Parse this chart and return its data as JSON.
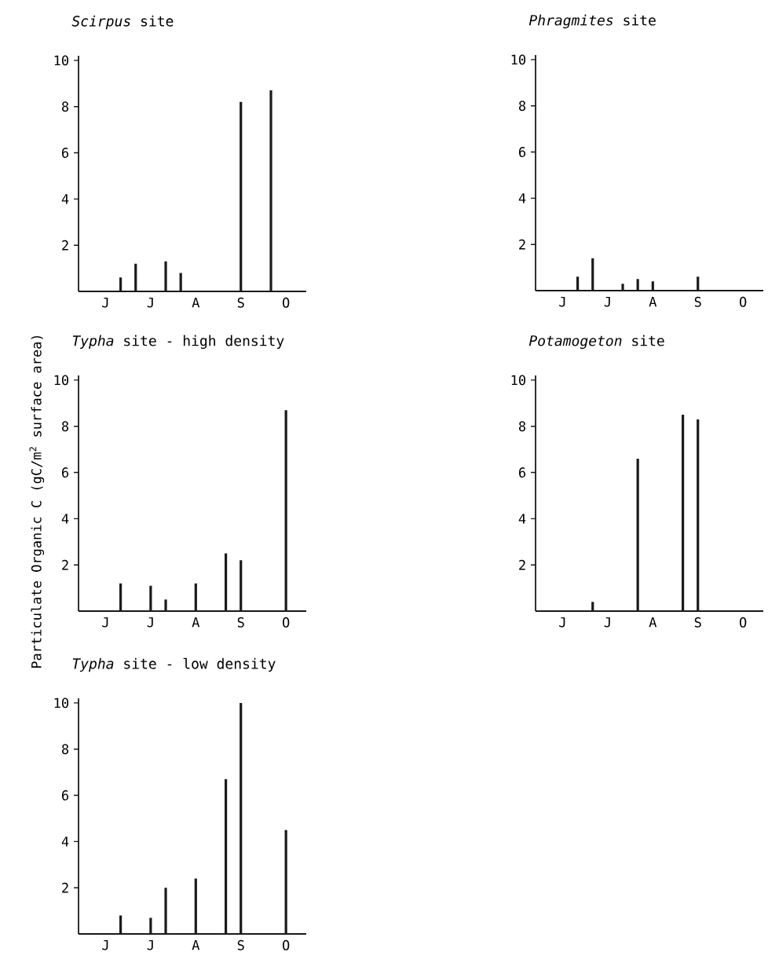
{
  "chart_data": [
    {
      "type": "bar",
      "title": "*Scirpus* site",
      "color": "#1a1a1a",
      "categories": [
        null,
        "J",
        null,
        null,
        "J",
        null,
        null,
        "A",
        null,
        null,
        "S",
        null,
        null,
        "O",
        null
      ],
      "values": [
        null,
        null,
        0.6,
        1.2,
        null,
        1.3,
        0.8,
        null,
        null,
        null,
        8.2,
        null,
        8.7,
        null,
        null
      ],
      "ylim": [
        0,
        10.2
      ],
      "yticks": [
        2,
        4,
        6,
        8,
        10
      ]
    },
    {
      "type": "bar",
      "title": "*Phragmites* site",
      "color": "#1a1a1a",
      "categories": [
        null,
        "J",
        null,
        null,
        "J",
        null,
        null,
        "A",
        null,
        null,
        "S",
        null,
        null,
        "O",
        null
      ],
      "values": [
        null,
        null,
        0.6,
        1.4,
        null,
        0.3,
        0.5,
        0.4,
        null,
        null,
        0.6,
        null,
        null,
        null,
        null
      ],
      "ylim": [
        0,
        10.2
      ],
      "yticks": [
        2,
        4,
        6,
        8,
        10
      ]
    },
    {
      "type": "bar",
      "title": "*Typha* site -  high density",
      "ylabel": "Particulate Organic C (gC/m$^{2}$ surface area)",
      "color": "#1a1a1a",
      "categories": [
        null,
        "J",
        null,
        null,
        "J",
        null,
        null,
        "A",
        null,
        null,
        "S",
        null,
        null,
        "O",
        null
      ],
      "values": [
        null,
        null,
        1.2,
        null,
        1.1,
        0.5,
        null,
        1.2,
        null,
        2.5,
        2.2,
        null,
        null,
        8.7,
        null
      ],
      "ylim": [
        0,
        10.2
      ],
      "yticks": [
        2,
        4,
        6,
        8,
        10
      ]
    },
    {
      "type": "bar",
      "title": "*Potamogeton* site",
      "color": "#1a1a1a",
      "categories": [
        null,
        "J",
        null,
        null,
        "J",
        null,
        null,
        "A",
        null,
        null,
        "S",
        null,
        null,
        "O",
        null
      ],
      "values": [
        null,
        null,
        null,
        0.4,
        null,
        null,
        6.6,
        null,
        null,
        8.5,
        8.3,
        null,
        null,
        null,
        null
      ],
      "ylim": [
        0,
        10.2
      ],
      "yticks": [
        2,
        4,
        6,
        8,
        10
      ]
    },
    {
      "type": "bar",
      "title": "*Typha* site - low density",
      "color": "#1a1a1a",
      "categories": [
        null,
        "J",
        null,
        null,
        "J",
        null,
        null,
        "A",
        null,
        null,
        "S",
        null,
        null,
        "O",
        null
      ],
      "values": [
        null,
        null,
        0.8,
        null,
        0.7,
        2.0,
        null,
        2.4,
        null,
        6.7,
        10,
        null,
        null,
        4.5,
        null
      ],
      "ylim": [
        0,
        10.2
      ],
      "yticks": [
        2,
        4,
        6,
        8,
        10
      ]
    }
  ]
}
